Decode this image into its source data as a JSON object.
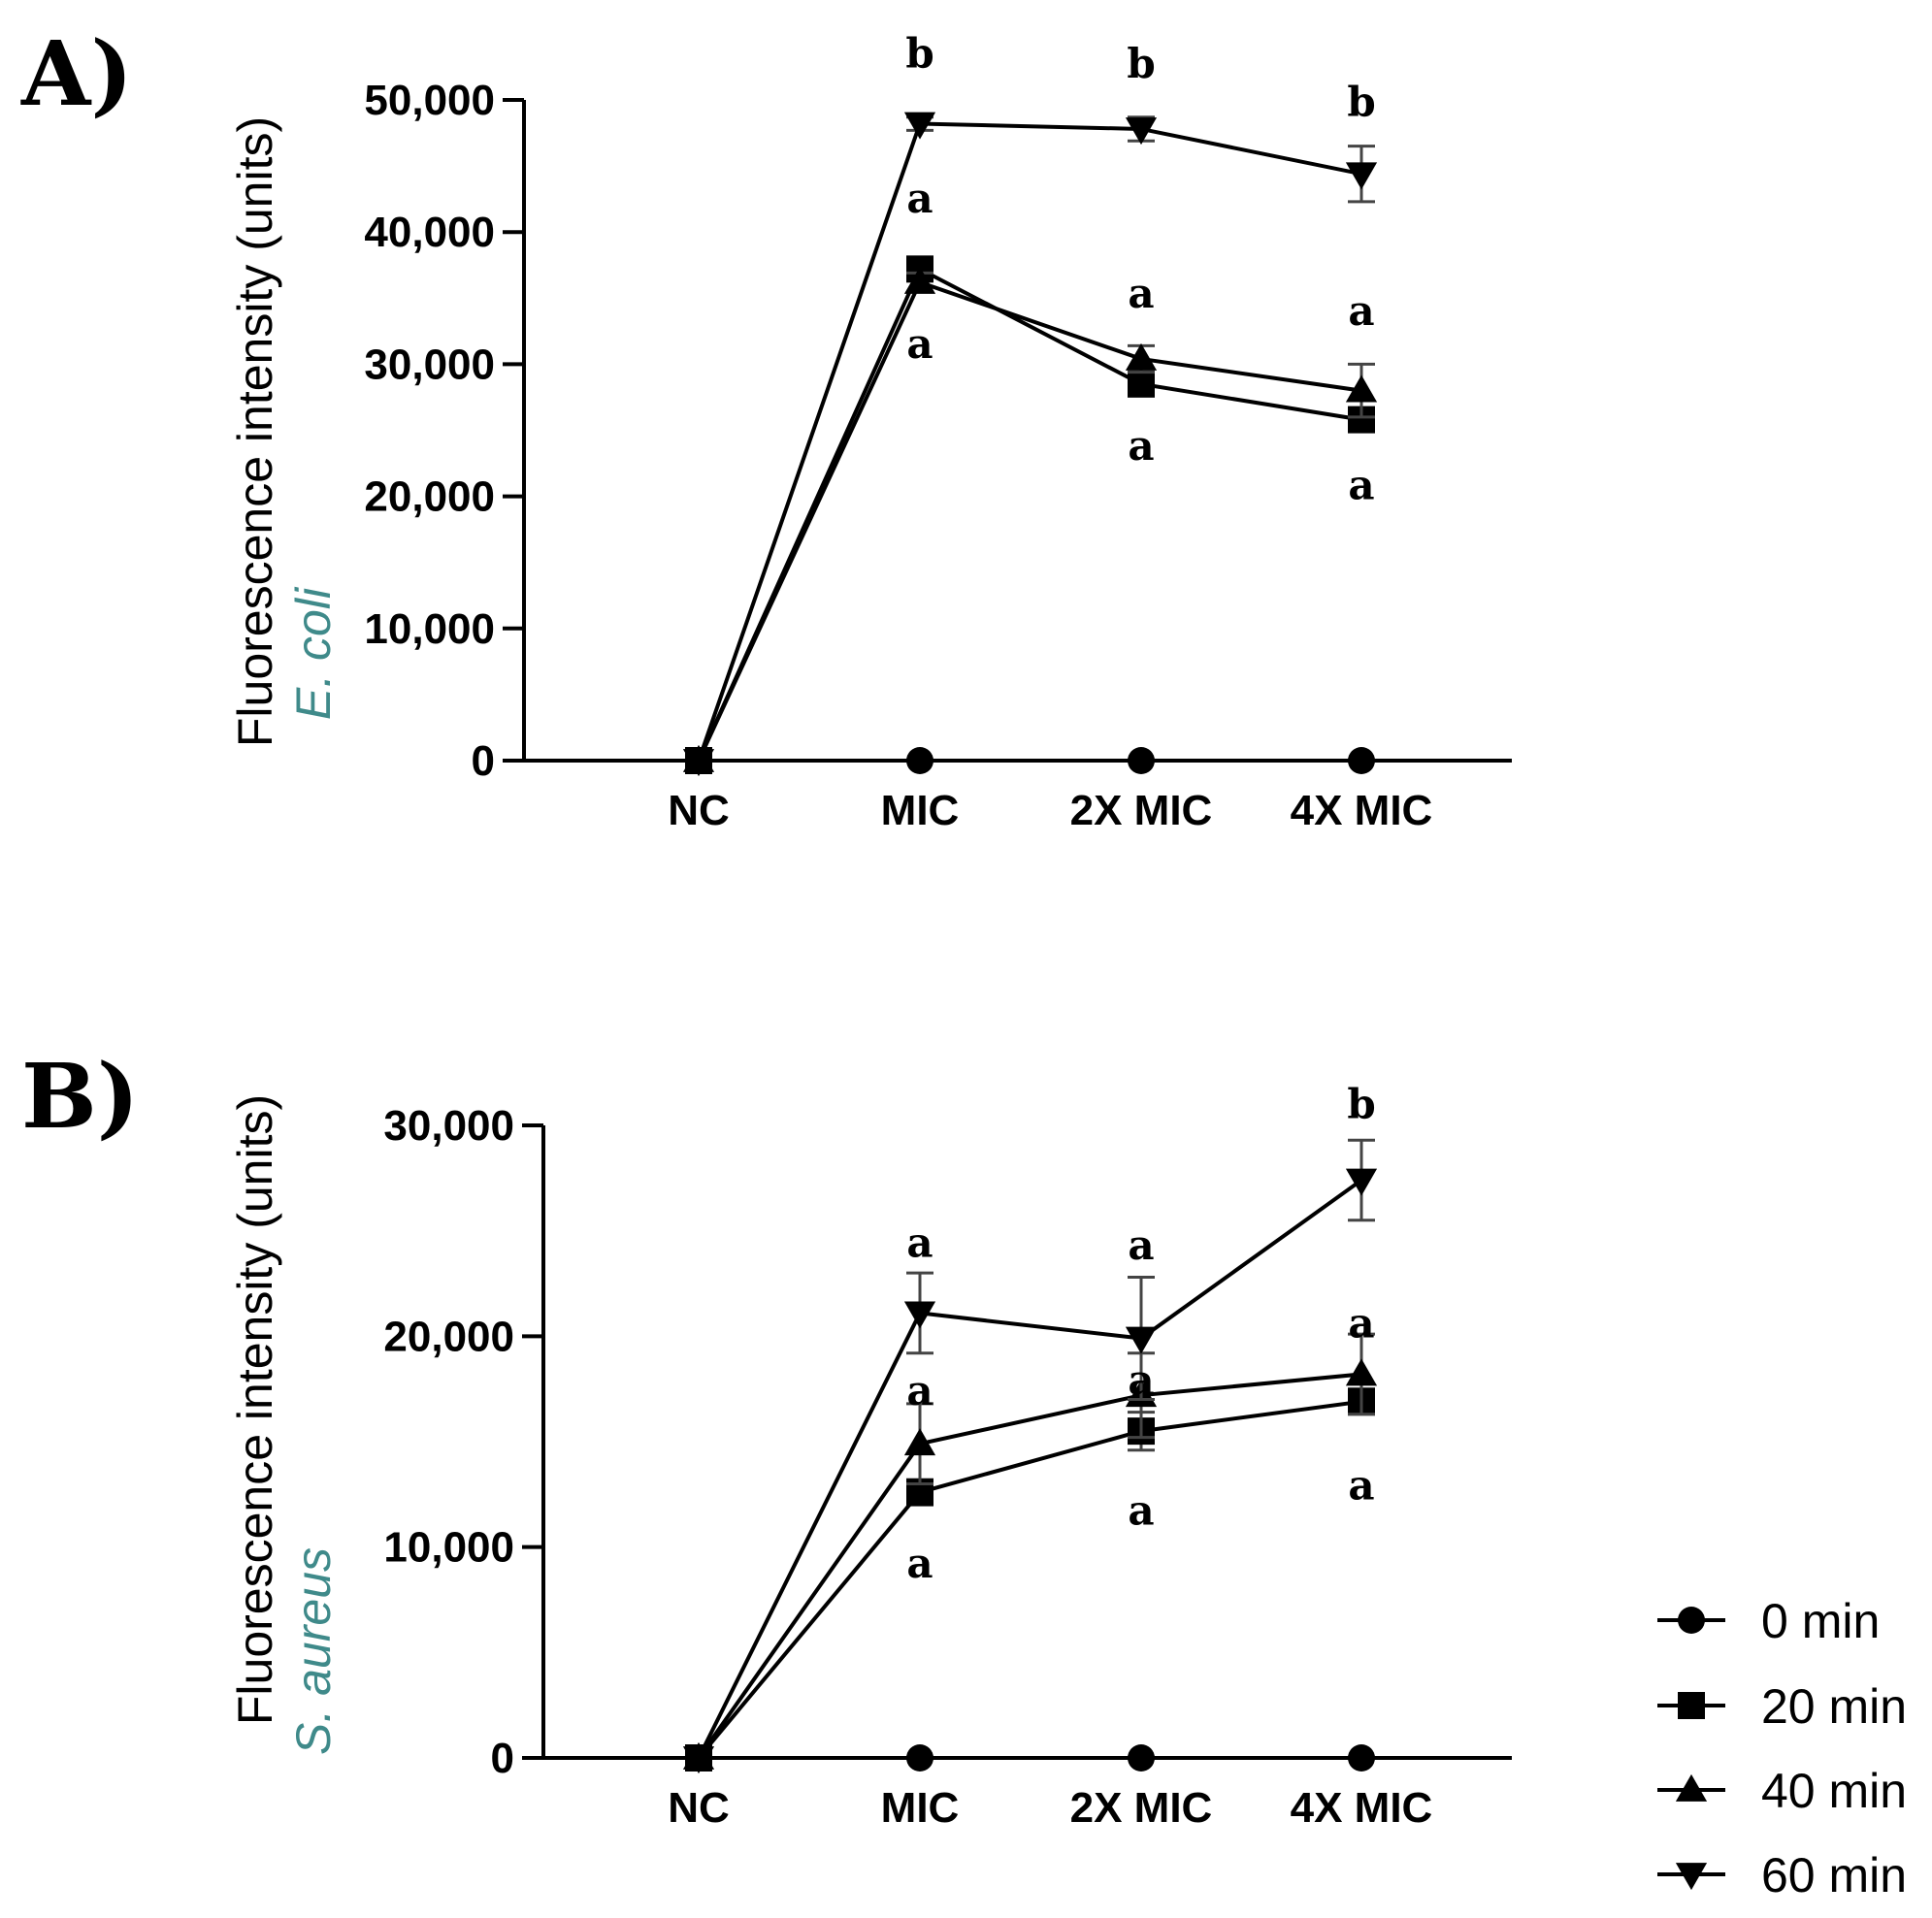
{
  "chart_data": [
    {
      "panel_label": "A)",
      "type": "line",
      "title": "",
      "ylabel": "Fluorescence intensity (units)",
      "ylabel_organism": "E. coli",
      "xlabel": "",
      "categories": [
        "NC",
        "MIC",
        "2X MIC",
        "4X MIC"
      ],
      "ylim": [
        0,
        50000
      ],
      "yticks": [
        0,
        10000,
        20000,
        30000,
        40000,
        50000
      ],
      "ytick_labels": [
        "0",
        "10,000",
        "20,000",
        "30,000",
        "40,000",
        "50,000"
      ],
      "series": [
        {
          "name": "0 min",
          "marker": "circle",
          "values": [
            0,
            0,
            0,
            0
          ],
          "errors": [
            0,
            0,
            0,
            0
          ]
        },
        {
          "name": "20 min",
          "marker": "square",
          "values": [
            0,
            37200,
            28500,
            25800
          ],
          "errors": [
            0,
            600,
            800,
            700
          ]
        },
        {
          "name": "40 min",
          "marker": "triangle-up",
          "values": [
            0,
            36200,
            30400,
            28000
          ],
          "errors": [
            0,
            700,
            1000,
            2000
          ]
        },
        {
          "name": "60 min",
          "marker": "triangle-down",
          "values": [
            0,
            48200,
            47800,
            44400
          ],
          "errors": [
            0,
            500,
            900,
            2100
          ]
        }
      ],
      "annotations": [
        {
          "text": "b",
          "category": "MIC",
          "value": 53500
        },
        {
          "text": "a",
          "category": "MIC",
          "value": 42500
        },
        {
          "text": "a",
          "category": "MIC",
          "value": 31500
        },
        {
          "text": "b",
          "category": "2X MIC",
          "value": 52700
        },
        {
          "text": "a",
          "category": "2X MIC",
          "value": 35300
        },
        {
          "text": "a",
          "category": "2X MIC",
          "value": 23800
        },
        {
          "text": "b",
          "category": "4X MIC",
          "value": 49800
        },
        {
          "text": "a",
          "category": "4X MIC",
          "value": 34000
        },
        {
          "text": "a",
          "category": "4X MIC",
          "value": 20800
        }
      ]
    },
    {
      "panel_label": "B)",
      "type": "line",
      "title": "",
      "ylabel": "Fluorescence intensity (units)",
      "ylabel_organism": "S. aureus",
      "xlabel": "",
      "categories": [
        "NC",
        "MIC",
        "2X MIC",
        "4X MIC"
      ],
      "ylim": [
        0,
        30000
      ],
      "yticks": [
        0,
        10000,
        20000,
        30000
      ],
      "ytick_labels": [
        "0",
        "10,000",
        "20,000",
        "30,000"
      ],
      "series": [
        {
          "name": "0 min",
          "marker": "circle",
          "values": [
            0,
            0,
            0,
            0
          ],
          "errors": [
            0,
            0,
            0,
            0
          ]
        },
        {
          "name": "20 min",
          "marker": "square",
          "values": [
            0,
            12600,
            15500,
            16900
          ],
          "errors": [
            0,
            600,
            900,
            600
          ]
        },
        {
          "name": "40 min",
          "marker": "triangle-up",
          "values": [
            0,
            14900,
            17200,
            18200
          ],
          "errors": [
            0,
            1900,
            2000,
            1900
          ]
        },
        {
          "name": "60 min",
          "marker": "triangle-down",
          "values": [
            0,
            21100,
            19900,
            27400
          ],
          "errors": [
            0,
            1900,
            2900,
            1900
          ]
        }
      ],
      "annotations": [
        {
          "text": "a",
          "category": "MIC",
          "value": 24400
        },
        {
          "text": "a",
          "category": "MIC",
          "value": 17400
        },
        {
          "text": "a",
          "category": "MIC",
          "value": 9200
        },
        {
          "text": "a",
          "category": "2X MIC",
          "value": 24300
        },
        {
          "text": "a",
          "category": "2X MIC",
          "value": 17900
        },
        {
          "text": "a",
          "category": "2X MIC",
          "value": 11700
        },
        {
          "text": "b",
          "category": "4X MIC",
          "value": 31000
        },
        {
          "text": "a",
          "category": "4X MIC",
          "value": 20600
        },
        {
          "text": "a",
          "category": "4X MIC",
          "value": 12900
        }
      ]
    }
  ],
  "legend": {
    "entries": [
      {
        "label": "0 min",
        "marker": "circle"
      },
      {
        "label": "20 min",
        "marker": "square"
      },
      {
        "label": "40 min",
        "marker": "triangle-up"
      },
      {
        "label": "60 min",
        "marker": "triangle-down"
      }
    ]
  }
}
